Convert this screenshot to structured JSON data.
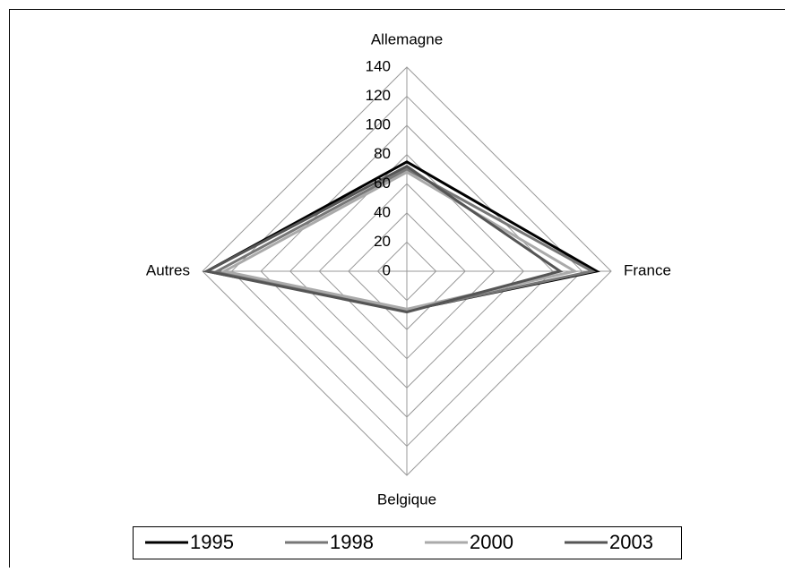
{
  "chart_data": {
    "type": "radar",
    "categories": [
      "Allemagne",
      "France",
      "Belgique",
      "Autres"
    ],
    "series": [
      {
        "name": "1995",
        "color": "#000000",
        "values": [
          75,
          130,
          27,
          137
        ]
      },
      {
        "name": "1998",
        "color": "#777777",
        "values": [
          70,
          127,
          27,
          130
        ]
      },
      {
        "name": "2000",
        "color": "#aaaaaa",
        "values": [
          68,
          115,
          26,
          125
        ]
      },
      {
        "name": "2003",
        "color": "#555555",
        "values": [
          72,
          105,
          28,
          137
        ]
      }
    ],
    "ylim": [
      0,
      140
    ],
    "yticks": [
      0,
      20,
      40,
      60,
      80,
      100,
      120,
      140
    ],
    "grid": true
  }
}
